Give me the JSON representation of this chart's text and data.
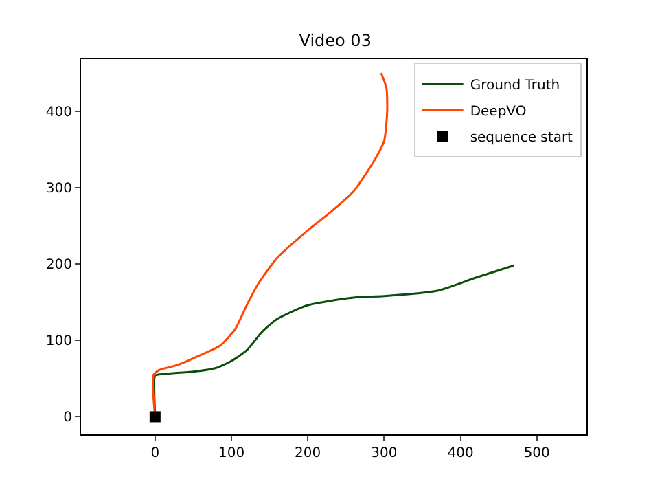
{
  "chart_data": {
    "type": "line",
    "title": "Video 03",
    "xlim": [
      -97,
      565
    ],
    "ylim": [
      -23,
      468
    ],
    "xticks": [
      0,
      100,
      200,
      300,
      400,
      500
    ],
    "yticks": [
      0,
      100,
      200,
      300,
      400
    ],
    "grid": false,
    "legend": "top right",
    "line_style": "solid",
    "marker": "none",
    "series": [
      {
        "name": "Ground Truth",
        "color": "#0b4d0b",
        "x": [
          0,
          -1,
          0,
          10,
          50,
          80,
          100,
          120,
          140,
          160,
          200,
          260,
          300,
          370,
          420,
          470
        ],
        "values": [
          0,
          30,
          54,
          56,
          59,
          64,
          73,
          87,
          111,
          128,
          146,
          156,
          158,
          165,
          182,
          198
        ]
      },
      {
        "name": "DeepVO",
        "color": "#ff4500",
        "x": [
          0,
          -3,
          -2,
          5,
          30,
          60,
          85,
          105,
          120,
          135,
          160,
          200,
          230,
          260,
          288,
          300,
          304,
          303,
          296
        ],
        "values": [
          0,
          40,
          55,
          61,
          68,
          81,
          93,
          115,
          146,
          174,
          208,
          244,
          268,
          295,
          337,
          361,
          400,
          430,
          450
        ]
      },
      {
        "name": "sequence start",
        "type": "scatter",
        "marker": "square",
        "color": "#000000",
        "x": [
          0
        ],
        "values": [
          0
        ]
      }
    ]
  }
}
